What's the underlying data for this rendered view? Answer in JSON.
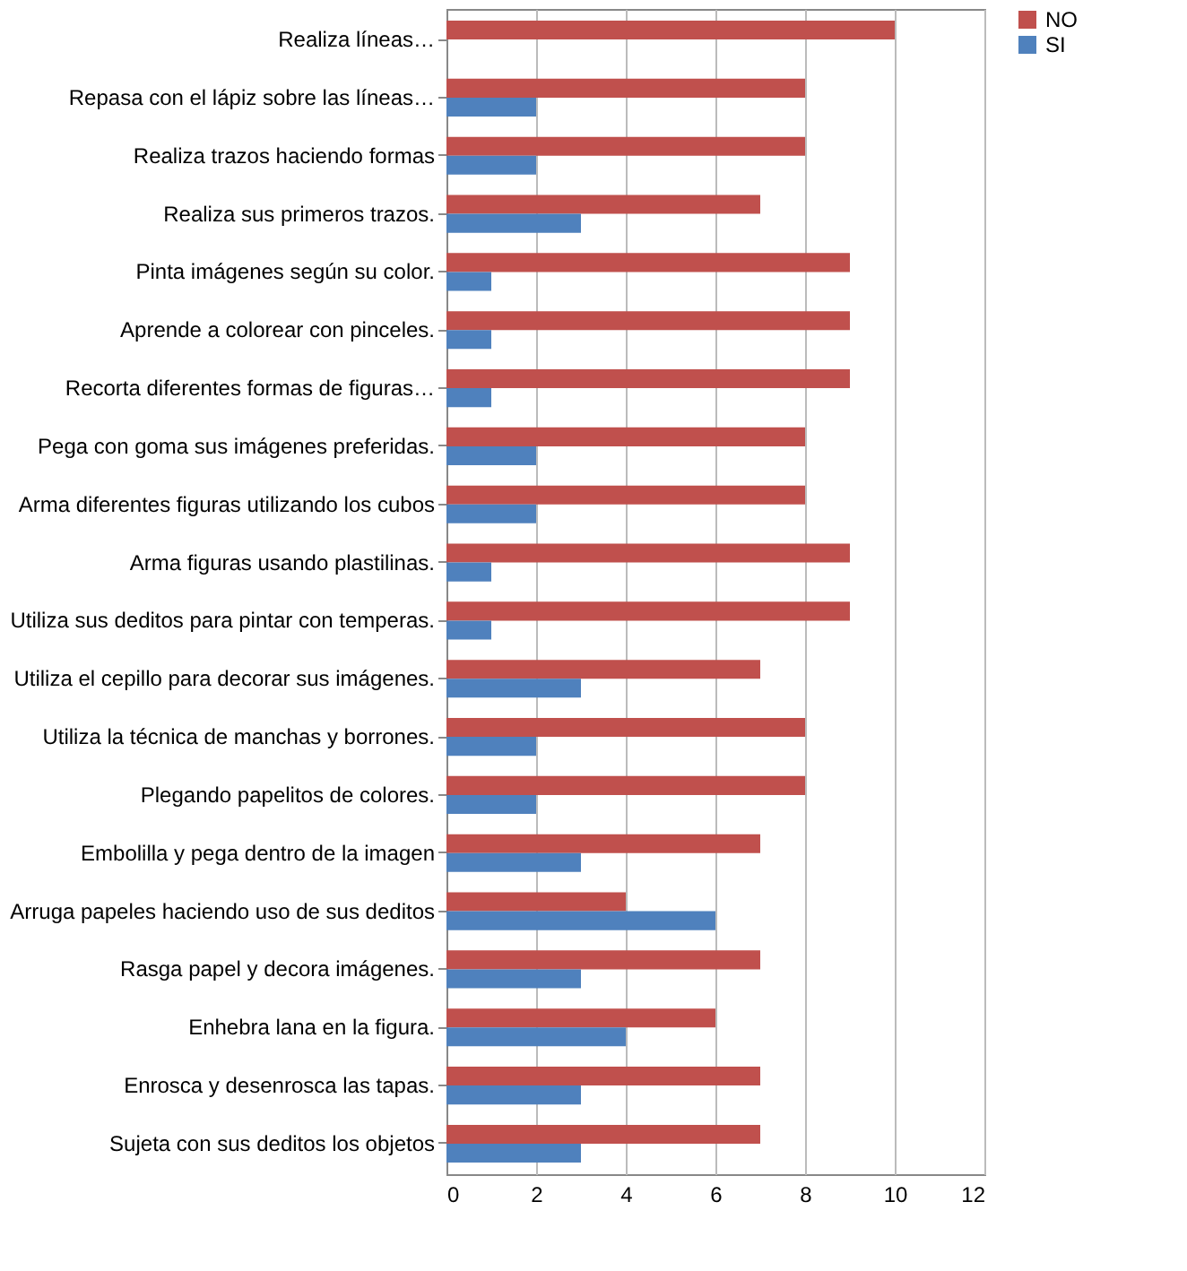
{
  "chart_data": {
    "type": "bar",
    "orientation": "horizontal",
    "categories": [
      "Realiza líneas…",
      "Repasa con el lápiz sobre las líneas…",
      "Realiza trazos haciendo formas",
      "Realiza sus primeros trazos.",
      "Pinta imágenes según su color.",
      "Aprende a colorear con pinceles.",
      "Recorta diferentes formas de figuras…",
      "Pega con goma sus imágenes preferidas.",
      "Arma diferentes figuras utilizando los cubos",
      "Arma figuras usando plastilinas.",
      "Utiliza sus deditos para pintar con temperas.",
      "Utiliza el cepillo para decorar sus imágenes.",
      "Utiliza la técnica de manchas y borrones.",
      "Plegando papelitos de colores.",
      "Embolilla y pega dentro de la imagen",
      "Arruga papeles haciendo uso de sus deditos",
      "Rasga papel y decora imágenes.",
      "Enhebra lana en la figura.",
      "Enrosca y desenrosca las tapas.",
      "Sujeta con sus deditos los objetos"
    ],
    "series": [
      {
        "name": "NO",
        "color": "#c0504d",
        "values": [
          10,
          8,
          8,
          7,
          9,
          9,
          9,
          8,
          8,
          9,
          9,
          7,
          8,
          8,
          7,
          4,
          7,
          6,
          7,
          7
        ]
      },
      {
        "name": "SI",
        "color": "#4f81bd",
        "values": [
          0,
          2,
          2,
          3,
          1,
          1,
          1,
          2,
          2,
          1,
          1,
          3,
          2,
          2,
          3,
          6,
          3,
          4,
          3,
          3
        ]
      }
    ],
    "xlim": [
      0,
      12
    ],
    "xticks": [
      0,
      2,
      4,
      6,
      8,
      10,
      12
    ],
    "grid": "x",
    "legend": "right"
  }
}
